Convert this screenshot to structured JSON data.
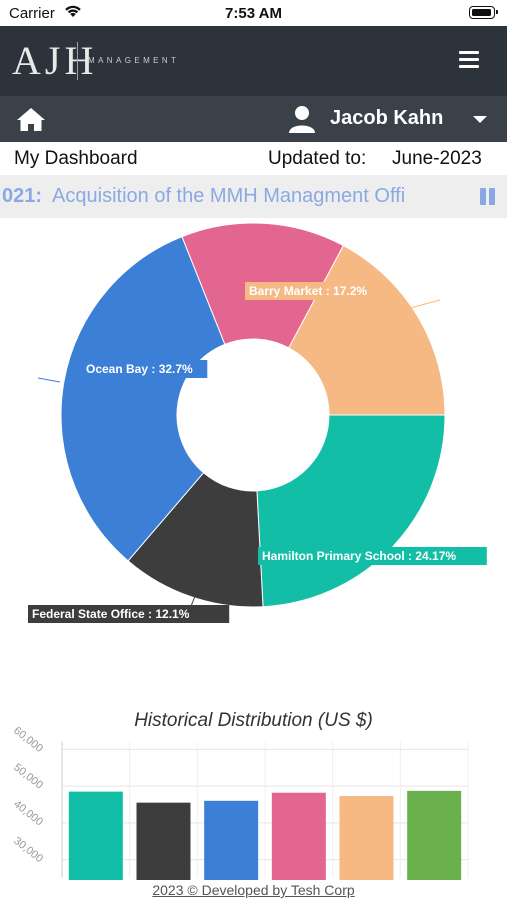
{
  "status": {
    "carrier": "Carrier",
    "time": "7:53 AM"
  },
  "brand": {
    "logo": "AJH",
    "sub": "MANAGEMENT"
  },
  "user": {
    "name": "Jacob Kahn"
  },
  "dashboard": {
    "title": "My Dashboard",
    "updated_label": "Updated to:",
    "updated_value": "June-2023"
  },
  "ticker": {
    "id": "021:",
    "text": "Acquisition of the MMH Managment Offi"
  },
  "colors": {
    "brand_bar": "#2c333b",
    "user_bar": "#3a4149",
    "teal": "#12bfa6",
    "dark": "#3d3d3d",
    "blue": "#3b7fd6",
    "pink": "#e36690",
    "peach": "#f6b984",
    "green": "#6ab04c"
  },
  "chart_data": [
    {
      "type": "pie",
      "title": "",
      "donut": true,
      "slices": [
        {
          "label": "Hamilton Primary School : 24.17%",
          "name": "Hamilton Primary School",
          "value": 24.17,
          "color": "#12bfa6"
        },
        {
          "label": "Federal State Office : 12.1%",
          "name": "Federal State Office",
          "value": 12.1,
          "color": "#3d3d3d"
        },
        {
          "label": "Ocean Bay : 32.7%",
          "name": "Ocean Bay",
          "value": 32.7,
          "color": "#3b7fd6"
        },
        {
          "label": "",
          "name": "",
          "value": 13.83,
          "color": "#e36690"
        },
        {
          "label": "Barry Market : 17.2%",
          "name": "Barry Market",
          "value": 17.2,
          "color": "#f6b984"
        }
      ]
    },
    {
      "type": "bar",
      "title": "Historical Distribution (US $)",
      "ylim": [
        25000,
        62000
      ],
      "yticks": [
        30000,
        40000,
        50000,
        60000
      ],
      "ytick_labels": [
        "30,000",
        "40,000",
        "50,000",
        "60,000"
      ],
      "values": [
        48500,
        45500,
        46000,
        48200,
        47300,
        48700
      ],
      "colors": [
        "#12bfa6",
        "#3d3d3d",
        "#3b7fd6",
        "#e36690",
        "#f6b984",
        "#6ab04c"
      ]
    }
  ],
  "footer": {
    "text": "2023 © Developed by Tesh Corp"
  }
}
